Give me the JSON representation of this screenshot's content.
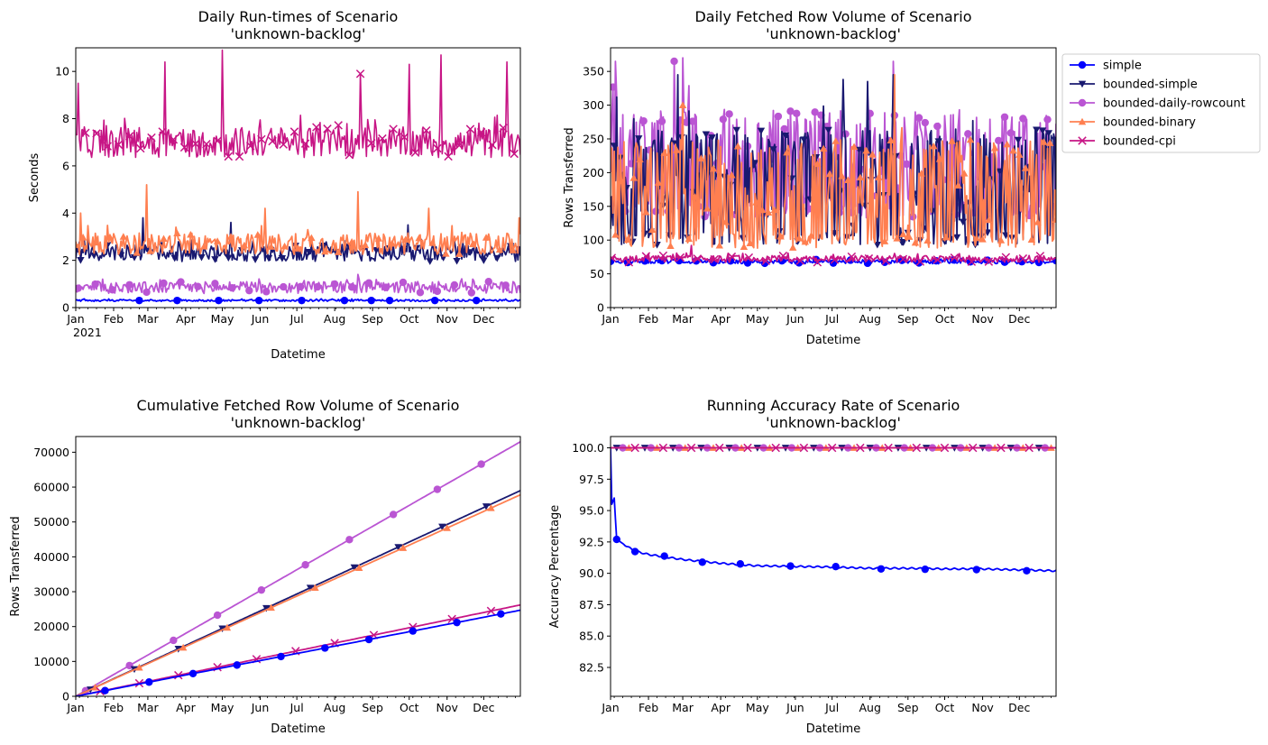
{
  "colors": {
    "simple": "#0000ff",
    "bounded-simple": "#191970",
    "bounded-daily-rowcount": "#ba55d3",
    "bounded-binary": "#ff7f50",
    "bounded-cpi": "#c71585"
  },
  "legend": {
    "placement": "outside right of top-right panel",
    "entries": [
      {
        "name": "simple",
        "marker": "circle"
      },
      {
        "name": "bounded-simple",
        "marker": "triangle-down"
      },
      {
        "name": "bounded-daily-rowcount",
        "marker": "circle"
      },
      {
        "name": "bounded-binary",
        "marker": "triangle-up"
      },
      {
        "name": "bounded-cpi",
        "marker": "x"
      }
    ]
  },
  "month_labels": [
    "Jan",
    "Feb",
    "Mar",
    "Apr",
    "May",
    "Jun",
    "Jul",
    "Aug",
    "Sep",
    "Oct",
    "Nov",
    "Dec"
  ],
  "chart_data": [
    {
      "id": "runtimes",
      "type": "line",
      "title_lines": [
        "Daily Run-times of Scenario",
        "'unknown-backlog'"
      ],
      "xlabel": "Datetime",
      "ylabel": "Seconds",
      "year_label": "2021",
      "x_range": [
        "2021-01-01",
        "2021-12-31"
      ],
      "ylim": [
        0,
        11
      ],
      "yticks": [
        0,
        2,
        4,
        6,
        8,
        10
      ],
      "series": [
        {
          "name": "simple",
          "marker": "circle",
          "baseline": 0.3,
          "noise": 0.04,
          "spikes": [
            [
              "2021-08-20",
              0.35
            ]
          ],
          "markers_at": [
            "2021-02-22",
            "2021-03-25",
            "2021-04-28",
            "2021-05-31",
            "2021-07-05",
            "2021-08-09",
            "2021-08-31",
            "2021-09-15",
            "2021-10-22",
            "2021-11-25"
          ]
        },
        {
          "name": "bounded-daily-rowcount",
          "marker": "circle",
          "baseline": 0.85,
          "noise": 0.25,
          "spikes": [
            [
              "2021-08-20",
              1.4
            ]
          ]
        },
        {
          "name": "bounded-simple",
          "marker": "triangle-down",
          "baseline": 2.3,
          "noise": 0.35,
          "spikes": [
            [
              "2021-02-25",
              3.8
            ],
            [
              "2021-05-08",
              3.6
            ],
            [
              "2021-09-30",
              3.5
            ]
          ]
        },
        {
          "name": "bounded-binary",
          "marker": "triangle-up",
          "baseline": 2.7,
          "noise": 0.45,
          "spikes": [
            [
              "2021-01-05",
              4.0
            ],
            [
              "2021-02-28",
              5.2
            ],
            [
              "2021-06-05",
              4.2
            ],
            [
              "2021-08-20",
              4.9
            ],
            [
              "2021-10-17",
              4.2
            ],
            [
              "2021-12-30",
              3.8
            ]
          ]
        },
        {
          "name": "bounded-cpi",
          "marker": "x",
          "baseline": 7.0,
          "noise": 0.65,
          "spikes": [
            [
              "2021-01-03",
              9.5
            ],
            [
              "2021-03-15",
              10.4
            ],
            [
              "2021-05-01",
              10.9
            ],
            [
              "2021-08-22",
              9.9
            ],
            [
              "2021-10-01",
              10.3
            ],
            [
              "2021-10-27",
              10.7
            ],
            [
              "2021-12-20",
              10.4
            ]
          ]
        }
      ]
    },
    {
      "id": "fetched",
      "type": "line",
      "title_lines": [
        "Daily Fetched Row Volume of Scenario",
        "'unknown-backlog'"
      ],
      "xlabel": "Datetime",
      "ylabel": "Rows Transferred",
      "x_range": [
        "2021-01-01",
        "2021-12-31"
      ],
      "ylim": [
        0,
        385
      ],
      "yticks": [
        0,
        50,
        100,
        150,
        200,
        250,
        300,
        350
      ],
      "series": [
        {
          "name": "simple",
          "marker": "circle",
          "baseline": 68,
          "noise": 3,
          "spikes": []
        },
        {
          "name": "bounded-cpi",
          "marker": "x",
          "baseline": 72,
          "noise": 5,
          "spikes": [
            [
              "2021-03-08",
              92
            ]
          ]
        },
        {
          "name": "bounded-daily-rowcount",
          "marker": "circle",
          "baseline": 210,
          "noise": 70,
          "spikes": [
            [
              "2021-01-05",
              365
            ],
            [
              "2021-02-22",
              365
            ],
            [
              "2021-03-01",
              370
            ],
            [
              "2021-08-20",
              365
            ]
          ]
        },
        {
          "name": "bounded-simple",
          "marker": "triangle-down",
          "baseline": 175,
          "noise": 75,
          "spikes": [
            [
              "2021-01-06",
              312
            ],
            [
              "2021-02-25",
              345
            ],
            [
              "2021-07-10",
              338
            ],
            [
              "2021-07-30",
              335
            ],
            [
              "2021-08-20",
              345
            ]
          ]
        },
        {
          "name": "bounded-binary",
          "marker": "triangle-up",
          "baseline": 165,
          "noise": 70,
          "spikes": [
            [
              "2021-03-01",
              300
            ],
            [
              "2021-08-21",
              345
            ]
          ]
        }
      ]
    },
    {
      "id": "cumulative",
      "type": "line",
      "title_lines": [
        "Cumulative Fetched Row Volume of Scenario",
        "'unknown-backlog'"
      ],
      "xlabel": "Datetime",
      "ylabel": "Rows Transferred",
      "x_range": [
        "2021-01-01",
        "2021-12-31"
      ],
      "ylim": [
        0,
        74500
      ],
      "yticks": [
        0,
        10000,
        20000,
        30000,
        40000,
        50000,
        60000,
        70000
      ],
      "series": [
        {
          "name": "bounded-daily-rowcount",
          "marker": "circle",
          "end_value": 73000
        },
        {
          "name": "bounded-simple",
          "marker": "triangle-down",
          "end_value": 59000
        },
        {
          "name": "bounded-binary",
          "marker": "triangle-up",
          "end_value": 57800
        },
        {
          "name": "bounded-cpi",
          "marker": "x",
          "end_value": 26200
        },
        {
          "name": "simple",
          "marker": "circle",
          "end_value": 24700
        }
      ]
    },
    {
      "id": "accuracy",
      "type": "line",
      "title_lines": [
        "Running Accuracy Rate of Scenario",
        "'unknown-backlog'"
      ],
      "xlabel": "Datetime",
      "ylabel": "Accuracy Percentage",
      "x_range": [
        "2021-01-01",
        "2021-12-31"
      ],
      "ylim": [
        80.2,
        100.9
      ],
      "yticks": [
        82.5,
        85.0,
        87.5,
        90.0,
        92.5,
        95.0,
        97.5,
        100.0
      ],
      "series": [
        {
          "name": "simple",
          "marker": "circle",
          "points": [
            [
              "2021-01-01",
              100.0
            ],
            [
              "2021-01-02",
              95.5
            ],
            [
              "2021-01-04",
              96.0
            ],
            [
              "2021-01-06",
              92.7
            ],
            [
              "2021-01-20",
              91.8
            ],
            [
              "2021-02-01",
              91.5
            ],
            [
              "2021-03-01",
              91.1
            ],
            [
              "2021-04-01",
              90.8
            ],
            [
              "2021-05-01",
              90.6
            ],
            [
              "2021-06-01",
              90.55
            ],
            [
              "2021-07-01",
              90.5
            ],
            [
              "2021-08-01",
              90.4
            ],
            [
              "2021-09-01",
              90.4
            ],
            [
              "2021-10-01",
              90.35
            ],
            [
              "2021-11-01",
              90.35
            ],
            [
              "2021-12-31",
              90.2
            ]
          ]
        },
        {
          "name": "bounded-simple",
          "marker": "triangle-down",
          "constant": 100.0
        },
        {
          "name": "bounded-daily-rowcount",
          "marker": "circle",
          "constant": 100.0
        },
        {
          "name": "bounded-binary",
          "marker": "triangle-up",
          "constant": 100.0
        },
        {
          "name": "bounded-cpi",
          "marker": "x",
          "constant": 100.0
        }
      ]
    }
  ]
}
